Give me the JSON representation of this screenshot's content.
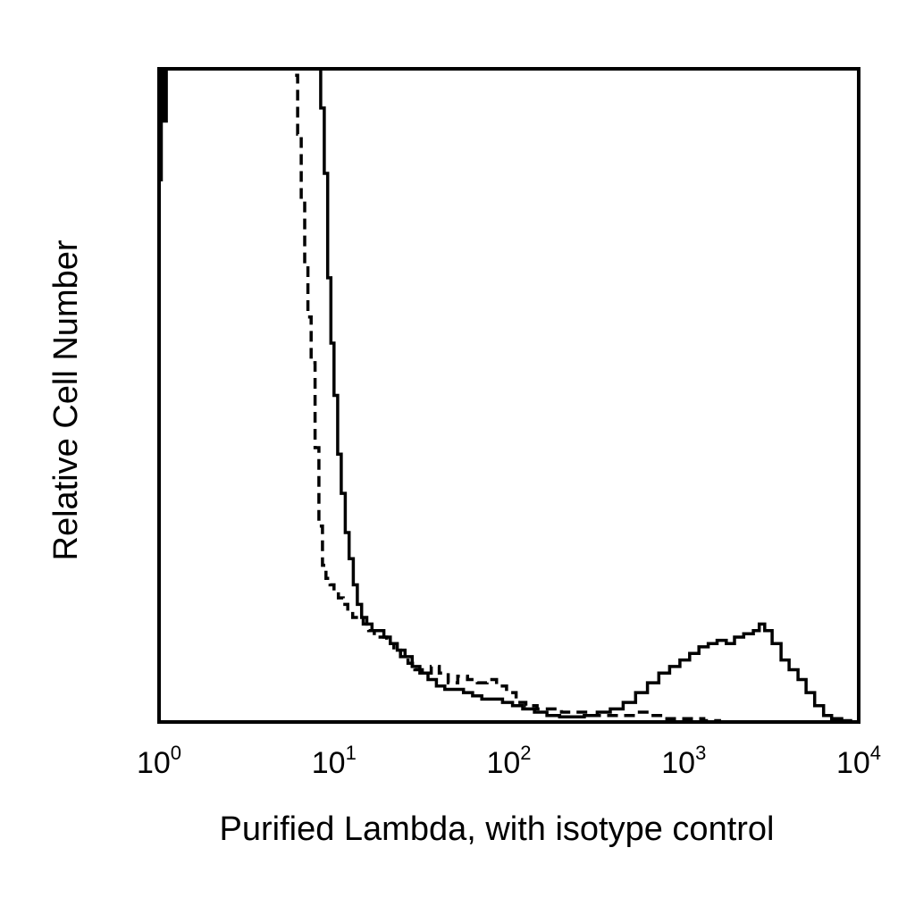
{
  "chart_data": {
    "type": "line",
    "title": "",
    "xlabel": "Purified Lambda, with isotype control",
    "ylabel": "Relative Cell Number",
    "x_scale": "log",
    "xlim": [
      1,
      10000
    ],
    "ylim": [
      0,
      100
    ],
    "y_tick_labels_shown": false,
    "grid": false,
    "x_tick_labels": [
      {
        "base": "10",
        "exp": "0"
      },
      {
        "base": "10",
        "exp": "1"
      },
      {
        "base": "10",
        "exp": "2"
      },
      {
        "base": "10",
        "exp": "3"
      },
      {
        "base": "10",
        "exp": "4"
      }
    ],
    "series": [
      {
        "style": "solid",
        "color": "#000000",
        "x": [
          1.0,
          1.03,
          1.06,
          1.1,
          1.15,
          7.8,
          8.1,
          8.4,
          8.8,
          9.2,
          9.6,
          10.0,
          10.5,
          11.0,
          11.6,
          12.2,
          12.9,
          13.6,
          14.4,
          15.4,
          16.5,
          17.8,
          19.3,
          21.0,
          23.0,
          25.5,
          28.0,
          31.0,
          34.5,
          38.5,
          43.0,
          48.0,
          55.0,
          62.0,
          70.0,
          80.0,
          92.0,
          105.0,
          120.0,
          140.0,
          165.0,
          195.0,
          230.0,
          270.0,
          320.0,
          380.0,
          450.0,
          530.0,
          620.0,
          720.0,
          830.0,
          950.0,
          1080.0,
          1220.0,
          1380.0,
          1550.0,
          1750.0,
          1950.0,
          2200.0,
          2500.0,
          2700.0,
          2900.0,
          3200.0,
          3600.0,
          4000.0,
          4500.0,
          5000.0,
          5600.0,
          6300.0,
          7000.0,
          8000.0,
          9000.0
        ],
        "y": [
          83,
          100,
          92,
          100,
          100,
          100,
          100,
          94,
          84,
          68,
          58,
          50,
          41,
          35,
          29,
          25,
          21,
          18,
          16,
          15,
          14,
          14,
          13,
          12,
          11,
          10,
          8.5,
          7.5,
          6.5,
          5.5,
          5.0,
          5.0,
          4.5,
          4.0,
          3.5,
          3.5,
          3.0,
          2.5,
          2.0,
          1.5,
          1.0,
          0.8,
          0.8,
          1.0,
          1.5,
          2.0,
          3.0,
          4.5,
          6.0,
          7.5,
          8.5,
          9.5,
          10.5,
          11.5,
          12.0,
          12.5,
          12.0,
          13.0,
          13.5,
          14.0,
          15.0,
          14.0,
          12.0,
          9.5,
          8.0,
          6.5,
          4.5,
          2.5,
          1.0,
          0.5,
          0.2,
          0.0
        ]
      },
      {
        "style": "dashed",
        "color": "#000000",
        "x": [
          6.0,
          6.2,
          6.5,
          6.8,
          7.1,
          7.4,
          7.8,
          8.2,
          8.6,
          9.0,
          9.5,
          10.0,
          10.6,
          11.3,
          12.0,
          12.8,
          13.7,
          14.7,
          15.8,
          17.0,
          18.5,
          20.0,
          22.0,
          24.0,
          26.5,
          29.0,
          32.0,
          36.0,
          40.0,
          45.0,
          51.0,
          58.0,
          66.0,
          75.0,
          85.0,
          97.0,
          110.0,
          125.0,
          145.0,
          170.0,
          200.0,
          240.0,
          290.0,
          350.0,
          430.0,
          530.0,
          650.0,
          800.0,
          1000.0,
          1300.0,
          1600.0
        ],
        "y": [
          99,
          90,
          80,
          70,
          62,
          55,
          42,
          30,
          24,
          22,
          21,
          20,
          19,
          18,
          17,
          16,
          16,
          15,
          14,
          13,
          13,
          12,
          11,
          10,
          9.0,
          8.0,
          7.5,
          8.5,
          7.5,
          6.0,
          7.0,
          6.5,
          6.0,
          6.5,
          5.5,
          4.5,
          3.0,
          2.5,
          2.0,
          2.0,
          1.5,
          1.5,
          1.0,
          1.0,
          1.0,
          1.5,
          1.0,
          0.5,
          0.5,
          0.2,
          0.0
        ]
      }
    ]
  }
}
